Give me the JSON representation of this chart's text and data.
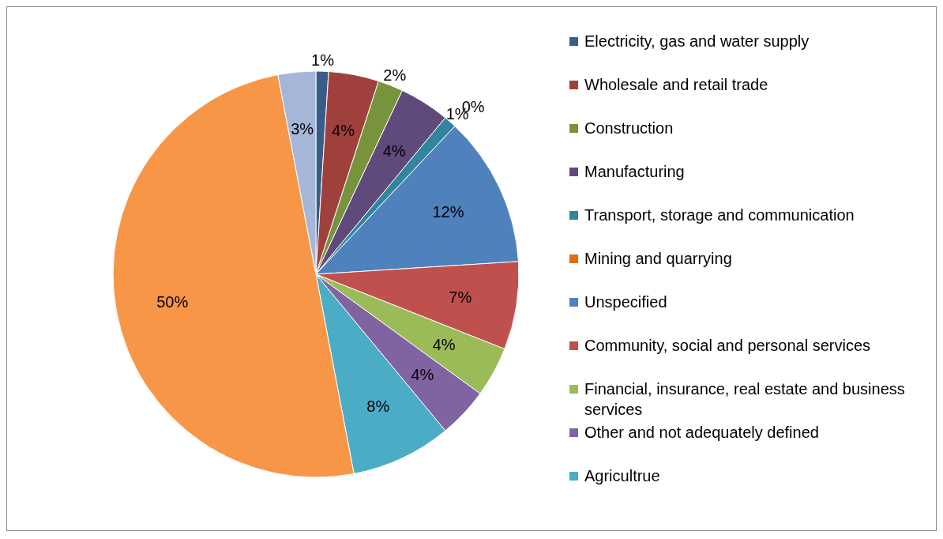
{
  "chart_data": {
    "type": "pie",
    "categories": [
      "Electricity, gas and water supply",
      "Wholesale and retail trade",
      "Construction",
      "Manufacturing",
      "Transport, storage and communication",
      "Mining and quarrying",
      "Unspecified",
      "Community, social and personal services",
      "Financial, insurance, real estate and business services",
      "Other and not adequately defined",
      "Agricultrue",
      null,
      null
    ],
    "values": [
      1,
      4,
      2,
      4,
      1,
      0,
      12,
      7,
      4,
      4,
      8,
      50,
      3
    ],
    "colors": [
      "#385d8a",
      "#a0403d",
      "#77933c",
      "#604a7b",
      "#31859c",
      "#e46c0a",
      "#4f81bd",
      "#c0504d",
      "#9bbb59",
      "#8064a2",
      "#4bacc6",
      "#f79646",
      "#a5b6d9"
    ],
    "value_labels": [
      "1%",
      "4%",
      "2%",
      "4%",
      "1%",
      "0%",
      "12%",
      "7%",
      "4%",
      "4%",
      "8%",
      "50%",
      "3%"
    ],
    "legend": "right"
  }
}
